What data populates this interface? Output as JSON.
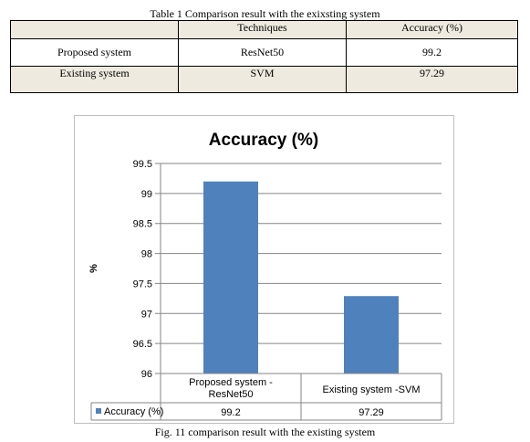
{
  "table": {
    "caption": "Table 1 Comparison result with the exixsting system",
    "headers": [
      "",
      "Techniques",
      "Accuracy (%)"
    ],
    "rows": [
      [
        "Proposed system",
        "ResNet50",
        "99.2"
      ],
      [
        "Existing system",
        "SVM",
        "97.29"
      ]
    ]
  },
  "chart_data": {
    "type": "bar",
    "title": "Accuracy (%)",
    "xlabel": "",
    "ylabel": "%",
    "categories": [
      "Proposed system - ResNet50",
      "Existing system -SVM"
    ],
    "category_lines": [
      [
        "Proposed system -",
        "ResNet50"
      ],
      [
        "Existing system -SVM"
      ]
    ],
    "series": [
      {
        "name": "Accuracy (%)",
        "values": [
          99.2,
          97.29
        ],
        "value_labels": [
          "99.2",
          "97.29"
        ],
        "color": "#4f81bd"
      }
    ],
    "ylim": [
      96,
      99.5
    ],
    "yticks": [
      96,
      96.5,
      97,
      97.5,
      98,
      98.5,
      99,
      99.5
    ],
    "ytick_labels": [
      "96",
      "96.5",
      "97",
      "97.5",
      "98",
      "98.5",
      "99",
      "99.5"
    ],
    "grid": true,
    "legend": "data-table-below-axis"
  },
  "figure": {
    "caption": "Fig. 11 comparison result with the existing system"
  }
}
